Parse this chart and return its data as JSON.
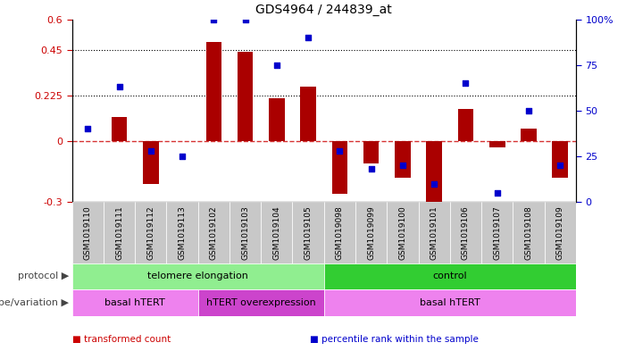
{
  "title": "GDS4964 / 244839_at",
  "samples": [
    "GSM1019110",
    "GSM1019111",
    "GSM1019112",
    "GSM1019113",
    "GSM1019102",
    "GSM1019103",
    "GSM1019104",
    "GSM1019105",
    "GSM1019098",
    "GSM1019099",
    "GSM1019100",
    "GSM1019101",
    "GSM1019106",
    "GSM1019107",
    "GSM1019108",
    "GSM1019109"
  ],
  "bar_values": [
    0.0,
    0.12,
    -0.21,
    0.0,
    0.49,
    0.44,
    0.21,
    0.27,
    -0.26,
    -0.11,
    -0.18,
    -0.3,
    0.16,
    -0.03,
    0.06,
    -0.18
  ],
  "dot_percentile": [
    40,
    63,
    28,
    25,
    100,
    100,
    75,
    90,
    28,
    18,
    20,
    10,
    65,
    5,
    50,
    20
  ],
  "ylim": [
    -0.3,
    0.6
  ],
  "yticks_left": [
    -0.3,
    0.0,
    0.225,
    0.45,
    0.6
  ],
  "yticks_left_labels": [
    "-0.3",
    "0",
    "0.225",
    "0.45",
    "0.6"
  ],
  "yticks_right": [
    0,
    25,
    50,
    75,
    100
  ],
  "yticks_right_labels": [
    "0",
    "25",
    "50",
    "75",
    "100%"
  ],
  "hline_y": [
    0.225,
    0.45
  ],
  "zero_line": 0.0,
  "protocol_groups": [
    {
      "label": "telomere elongation",
      "start": 0,
      "end": 8,
      "color": "#90EE90"
    },
    {
      "label": "control",
      "start": 8,
      "end": 16,
      "color": "#32CD32"
    }
  ],
  "genotype_groups": [
    {
      "label": "basal hTERT",
      "start": 0,
      "end": 4,
      "color": "#EE82EE"
    },
    {
      "label": "hTERT overexpression",
      "start": 4,
      "end": 8,
      "color": "#CC44CC"
    },
    {
      "label": "basal hTERT",
      "start": 8,
      "end": 16,
      "color": "#EE82EE"
    }
  ],
  "bar_color": "#AA0000",
  "dot_color": "#0000CC",
  "legend_items": [
    {
      "label": "transformed count",
      "color": "#AA0000",
      "marker_color": "#CC0000"
    },
    {
      "label": "percentile rank within the sample",
      "color": "#0000CC",
      "marker_color": "#0000CC"
    }
  ],
  "protocol_label": "protocol",
  "genotype_label": "genotype/variation",
  "label_color": "#444444",
  "bg_color": "#ffffff",
  "tick_label_color_left": "#CC0000",
  "tick_label_color_right": "#0000CC",
  "sample_bg_color": "#C8C8C8",
  "zero_line_color": "#CC0000"
}
